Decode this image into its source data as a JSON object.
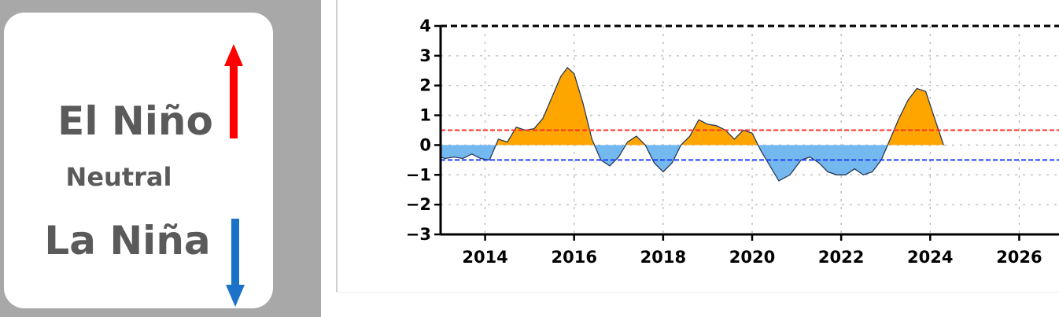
{
  "legend": {
    "el_nino": "El Niño",
    "neutral": "Neutral",
    "la_nina": "La Niña"
  },
  "colors": {
    "el_nino_arrow": "#ff0000",
    "la_nina_arrow": "#1a73c8",
    "positive_fill": "#ffa500",
    "negative_fill": "#74b8f0",
    "upper_threshold": "#ff3030",
    "lower_threshold": "#2040ff",
    "panel_bg": "#a8a8a8"
  },
  "icons": {
    "up": "arrow-up-icon",
    "down": "arrow-down-icon"
  },
  "chart_data": {
    "type": "area",
    "title": "",
    "xlabel": "",
    "ylabel": "",
    "xlim": [
      2013.0,
      2027.0
    ],
    "ylim": [
      -3,
      4
    ],
    "x_ticks": [
      2014,
      2016,
      2018,
      2020,
      2022,
      2024,
      2026
    ],
    "y_ticks": [
      4,
      3,
      2,
      1,
      0,
      -1,
      -2,
      -3
    ],
    "y_tick_labels": [
      "4",
      "3",
      "2",
      "1",
      "0",
      "−1",
      "−2",
      "−3"
    ],
    "grid": true,
    "thresholds": [
      0.5,
      -0.5
    ],
    "series": [
      {
        "x": [
          2013.0,
          2013.1,
          2013.3,
          2013.5,
          2013.7,
          2013.9,
          2014.1,
          2014.3,
          2014.5,
          2014.7,
          2014.9,
          2015.1,
          2015.3,
          2015.5,
          2015.7,
          2015.85,
          2016.0,
          2016.2,
          2016.4,
          2016.6,
          2016.8,
          2017.0,
          2017.2,
          2017.4,
          2017.6,
          2017.8,
          2018.0,
          2018.2,
          2018.4,
          2018.6,
          2018.8,
          2019.0,
          2019.2,
          2019.4,
          2019.6,
          2019.8,
          2020.0,
          2020.2,
          2020.4,
          2020.6,
          2020.85,
          2021.1,
          2021.3,
          2021.5,
          2021.7,
          2021.9,
          2022.1,
          2022.3,
          2022.5,
          2022.7,
          2022.9,
          2023.1,
          2023.3,
          2023.5,
          2023.7,
          2023.9,
          2024.1,
          2024.3
        ],
        "values": [
          -0.4,
          -0.45,
          -0.4,
          -0.45,
          -0.3,
          -0.45,
          -0.5,
          0.2,
          0.1,
          0.6,
          0.5,
          0.55,
          0.9,
          1.6,
          2.3,
          2.6,
          2.4,
          1.4,
          0.2,
          -0.5,
          -0.7,
          -0.4,
          0.1,
          0.3,
          0.0,
          -0.6,
          -0.9,
          -0.6,
          0.0,
          0.3,
          0.85,
          0.7,
          0.65,
          0.5,
          0.2,
          0.5,
          0.4,
          -0.2,
          -0.7,
          -1.2,
          -1.0,
          -0.5,
          -0.4,
          -0.6,
          -0.9,
          -1.0,
          -1.0,
          -0.8,
          -1.0,
          -0.9,
          -0.5,
          0.2,
          0.9,
          1.5,
          1.9,
          1.8,
          0.9,
          0.0
        ]
      }
    ]
  }
}
